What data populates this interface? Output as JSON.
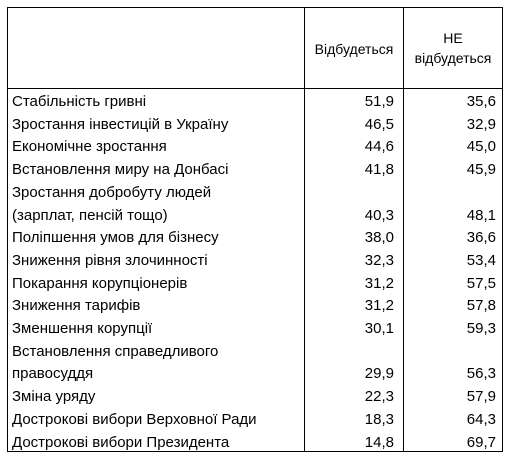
{
  "headers": {
    "happen": "Відбудеться",
    "not_happen_line1": "НЕ",
    "not_happen_line2": "відбудеться"
  },
  "rows": [
    {
      "label": "Стабільність гривні",
      "happen": "51,9",
      "not_happen": "35,6"
    },
    {
      "label": "Зростання інвестицій в Україну",
      "happen": "46,5",
      "not_happen": "32,9"
    },
    {
      "label": "Економічне зростання",
      "happen": "44,6",
      "not_happen": "45,0"
    },
    {
      "label": "Встановлення миру на Донбасі",
      "happen": "41,8",
      "not_happen": "45,9"
    },
    {
      "label": "Зростання добробуту людей",
      "happen": "",
      "not_happen": ""
    },
    {
      "label": "(зарплат, пенсій тощо)",
      "happen": "40,3",
      "not_happen": "48,1"
    },
    {
      "label": "Поліпшення умов для бізнесу",
      "happen": "38,0",
      "not_happen": "36,6"
    },
    {
      "label": "Зниження рівня злочинності",
      "happen": "32,3",
      "not_happen": "53,4"
    },
    {
      "label": "Покарання корупціонерів",
      "happen": "31,2",
      "not_happen": "57,5"
    },
    {
      "label": "Зниження тарифів",
      "happen": "31,2",
      "not_happen": "57,8"
    },
    {
      "label": "Зменшення корупції",
      "happen": "30,1",
      "not_happen": "59,3"
    },
    {
      "label": "Встановлення справедливого",
      "happen": "",
      "not_happen": ""
    },
    {
      "label": "правосуддя",
      "happen": "29,9",
      "not_happen": "56,3"
    },
    {
      "label": "Зміна уряду",
      "happen": "22,3",
      "not_happen": "57,9"
    },
    {
      "label": "Дострокові вибори Верховної Ради",
      "happen": "18,3",
      "not_happen": "64,3"
    },
    {
      "label": "Дострокові вибори  Президента",
      "happen": "14,8",
      "not_happen": "69,7"
    }
  ]
}
